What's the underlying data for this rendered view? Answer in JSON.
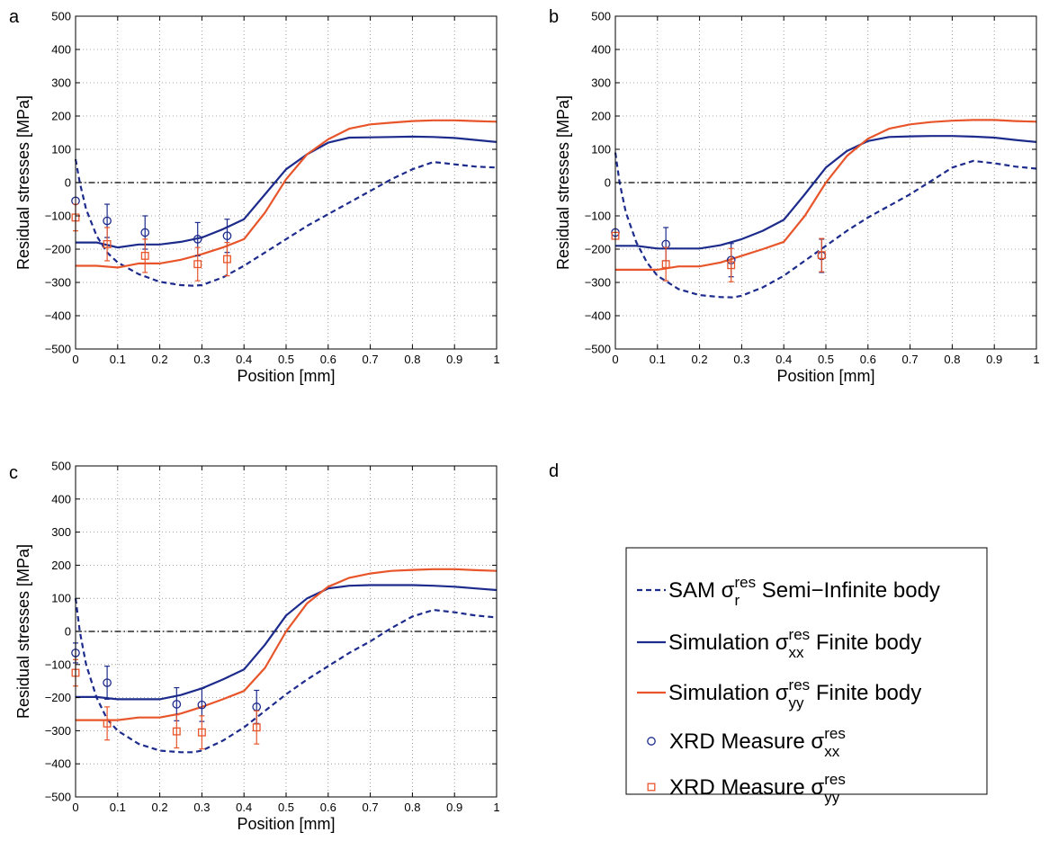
{
  "colors": {
    "sam": "#1c2b8c",
    "sim_xx": "#1c2b8c",
    "sim_yy": "#e8552a",
    "xrd_xx": "#1c2b8c",
    "xrd_yy": "#e8552a",
    "zero_line": "#000000",
    "grid": "#8a8a8a"
  },
  "legend": {
    "panel_letter": "d",
    "items": [
      {
        "pre": "SAM ",
        "sym": "σ",
        "sup": "res",
        "sub": "r",
        "post": " Semi−Infinite body",
        "marker": "dashed",
        "color": "#1c2b8c"
      },
      {
        "pre": "Simulation ",
        "sym": "σ",
        "sup": "res",
        "sub": "xx",
        "post": " Finite body",
        "marker": "line",
        "color": "#1c2b8c"
      },
      {
        "pre": "Simulation ",
        "sym": "σ",
        "sup": "res",
        "sub": "yy",
        "post": " Finite body",
        "marker": "line",
        "color": "#e8552a"
      },
      {
        "pre": "XRD Measure ",
        "sym": "σ",
        "sup": "res",
        "sub": "xx",
        "post": "",
        "marker": "circle",
        "color": "#1c2b8c"
      },
      {
        "pre": "XRD Measure ",
        "sym": "σ",
        "sup": "res",
        "sub": "yy",
        "post": "",
        "marker": "square",
        "color": "#e8552a"
      }
    ]
  },
  "chart_data": [
    {
      "panel": "a",
      "type": "line",
      "xlabel": "Position [mm]",
      "ylabel": "Residual stresses [MPa]",
      "xlim": [
        0,
        1
      ],
      "ylim": [
        -500,
        500
      ],
      "xticks": [
        0,
        0.1,
        0.2,
        0.3,
        0.4,
        0.5,
        0.6,
        0.7,
        0.8,
        0.9,
        1
      ],
      "xtick_labels": [
        "0",
        "0.1",
        "0.2",
        "0.3",
        "0.4",
        "0.5",
        "0.6",
        "0.7",
        "0.8",
        "0.9",
        "1"
      ],
      "yticks": [
        -500,
        -400,
        -300,
        -200,
        -100,
        0,
        100,
        200,
        300,
        400,
        500
      ],
      "ytick_labels": [
        "−500",
        "−400",
        "−300",
        "−200",
        "−100",
        "0",
        "100",
        "200",
        "300",
        "400",
        "500"
      ],
      "grid": true,
      "zero_line": true,
      "series": [
        {
          "key": "sam",
          "style": "dashed",
          "x": [
            0,
            0.01,
            0.025,
            0.05,
            0.075,
            0.1,
            0.15,
            0.2,
            0.25,
            0.28,
            0.3,
            0.35,
            0.4,
            0.45,
            0.5,
            0.55,
            0.6,
            0.65,
            0.7,
            0.75,
            0.8,
            0.85,
            0.9,
            0.95,
            1
          ],
          "y": [
            70,
            0,
            -80,
            -160,
            -210,
            -240,
            -275,
            -298,
            -308,
            -310,
            -308,
            -285,
            -250,
            -210,
            -170,
            -130,
            -95,
            -60,
            -25,
            10,
            40,
            62,
            55,
            48,
            45
          ]
        },
        {
          "key": "sim_xx",
          "style": "solid",
          "x": [
            0,
            0.05,
            0.1,
            0.15,
            0.2,
            0.25,
            0.3,
            0.35,
            0.4,
            0.45,
            0.5,
            0.55,
            0.6,
            0.65,
            0.7,
            0.75,
            0.8,
            0.85,
            0.9,
            0.95,
            1
          ],
          "y": [
            -180,
            -180,
            -195,
            -186,
            -186,
            -178,
            -165,
            -140,
            -110,
            -35,
            40,
            85,
            120,
            135,
            136,
            137,
            138,
            137,
            134,
            128,
            122
          ]
        },
        {
          "key": "sim_yy",
          "style": "solid",
          "x": [
            0,
            0.05,
            0.1,
            0.15,
            0.2,
            0.25,
            0.3,
            0.35,
            0.4,
            0.45,
            0.5,
            0.55,
            0.6,
            0.65,
            0.7,
            0.75,
            0.8,
            0.85,
            0.9,
            0.95,
            1
          ],
          "y": [
            -250,
            -250,
            -255,
            -243,
            -243,
            -232,
            -215,
            -195,
            -170,
            -90,
            10,
            85,
            130,
            162,
            175,
            180,
            185,
            187,
            187,
            185,
            183
          ]
        },
        {
          "key": "xrd_xx",
          "style": "circle",
          "x": [
            0,
            0.075,
            0.165,
            0.29,
            0.36
          ],
          "y": [
            -55,
            -115,
            -150,
            -170,
            -160
          ],
          "err": [
            0,
            50,
            50,
            50,
            50
          ]
        },
        {
          "key": "xrd_yy",
          "style": "square",
          "x": [
            0,
            0.075,
            0.165,
            0.29,
            0.36
          ],
          "y": [
            -105,
            -185,
            -220,
            -245,
            -230
          ],
          "err": [
            40,
            50,
            50,
            50,
            50
          ]
        }
      ]
    },
    {
      "panel": "b",
      "type": "line",
      "xlabel": "Position [mm]",
      "ylabel": "Residual stresses [MPa]",
      "xlim": [
        0,
        1
      ],
      "ylim": [
        -500,
        500
      ],
      "xticks": [
        0,
        0.1,
        0.2,
        0.3,
        0.4,
        0.5,
        0.6,
        0.7,
        0.8,
        0.9,
        1
      ],
      "xtick_labels": [
        "0",
        "0.1",
        "0.2",
        "0.3",
        "0.4",
        "0.5",
        "0.6",
        "0.7",
        "0.8",
        "0.9",
        "1"
      ],
      "yticks": [
        -500,
        -400,
        -300,
        -200,
        -100,
        0,
        100,
        200,
        300,
        400,
        500
      ],
      "ytick_labels": [
        "−500",
        "−400",
        "−300",
        "−200",
        "−100",
        "0",
        "100",
        "200",
        "300",
        "400",
        "500"
      ],
      "grid": true,
      "zero_line": true,
      "series": [
        {
          "key": "sam",
          "style": "dashed",
          "x": [
            0,
            0.01,
            0.025,
            0.05,
            0.075,
            0.1,
            0.15,
            0.2,
            0.25,
            0.28,
            0.3,
            0.35,
            0.4,
            0.45,
            0.5,
            0.55,
            0.6,
            0.65,
            0.7,
            0.75,
            0.8,
            0.85,
            0.9,
            0.95,
            1
          ],
          "y": [
            90,
            0,
            -90,
            -180,
            -240,
            -280,
            -320,
            -338,
            -344,
            -345,
            -340,
            -315,
            -280,
            -235,
            -190,
            -145,
            -105,
            -70,
            -35,
            5,
            45,
            65,
            58,
            48,
            42
          ]
        },
        {
          "key": "sim_xx",
          "style": "solid",
          "x": [
            0,
            0.05,
            0.1,
            0.15,
            0.2,
            0.25,
            0.3,
            0.35,
            0.4,
            0.45,
            0.5,
            0.55,
            0.6,
            0.65,
            0.7,
            0.75,
            0.8,
            0.85,
            0.9,
            0.95,
            1
          ],
          "y": [
            -190,
            -190,
            -198,
            -198,
            -198,
            -188,
            -170,
            -145,
            -112,
            -35,
            45,
            95,
            125,
            137,
            139,
            140,
            140,
            138,
            135,
            128,
            122
          ]
        },
        {
          "key": "sim_yy",
          "style": "solid",
          "x": [
            0,
            0.05,
            0.1,
            0.15,
            0.2,
            0.25,
            0.3,
            0.35,
            0.4,
            0.45,
            0.5,
            0.55,
            0.6,
            0.65,
            0.7,
            0.75,
            0.8,
            0.85,
            0.9,
            0.95,
            1
          ],
          "y": [
            -262,
            -262,
            -262,
            -252,
            -252,
            -240,
            -220,
            -200,
            -178,
            -100,
            0,
            80,
            132,
            162,
            175,
            182,
            186,
            188,
            188,
            185,
            183
          ]
        },
        {
          "key": "xrd_xx",
          "style": "circle",
          "x": [
            0,
            0.12,
            0.275,
            0.49
          ],
          "y": [
            -150,
            -185,
            -233,
            -220
          ],
          "err": [
            0,
            50,
            50,
            50
          ]
        },
        {
          "key": "xrd_yy",
          "style": "square",
          "x": [
            0,
            0.12,
            0.275,
            0.49
          ],
          "y": [
            -160,
            -245,
            -248,
            -218
          ],
          "err": [
            0,
            50,
            50,
            50
          ]
        }
      ]
    },
    {
      "panel": "c",
      "type": "line",
      "xlabel": "Position [mm]",
      "ylabel": "Residual stresses [MPa]",
      "xlim": [
        0,
        1
      ],
      "ylim": [
        -500,
        500
      ],
      "xticks": [
        0,
        0.1,
        0.2,
        0.3,
        0.4,
        0.5,
        0.6,
        0.7,
        0.8,
        0.9,
        1
      ],
      "xtick_labels": [
        "0",
        "0.1",
        "0.2",
        "0.3",
        "0.4",
        "0.5",
        "0.6",
        "0.7",
        "0.8",
        "0.9",
        "1"
      ],
      "yticks": [
        -500,
        -400,
        -300,
        -200,
        -100,
        0,
        100,
        200,
        300,
        400,
        500
      ],
      "ytick_labels": [
        "−500",
        "−400",
        "−300",
        "−200",
        "−100",
        "0",
        "100",
        "200",
        "300",
        "400",
        "500"
      ],
      "grid": true,
      "zero_line": true,
      "series": [
        {
          "key": "sam",
          "style": "dashed",
          "x": [
            0,
            0.01,
            0.025,
            0.05,
            0.075,
            0.1,
            0.15,
            0.2,
            0.25,
            0.28,
            0.3,
            0.35,
            0.4,
            0.45,
            0.5,
            0.55,
            0.6,
            0.65,
            0.7,
            0.75,
            0.8,
            0.85,
            0.9,
            0.95,
            1
          ],
          "y": [
            100,
            0,
            -100,
            -200,
            -265,
            -300,
            -340,
            -360,
            -365,
            -365,
            -360,
            -330,
            -290,
            -240,
            -190,
            -145,
            -105,
            -65,
            -30,
            10,
            45,
            65,
            58,
            48,
            42
          ]
        },
        {
          "key": "sim_xx",
          "style": "solid",
          "x": [
            0,
            0.05,
            0.1,
            0.15,
            0.2,
            0.25,
            0.3,
            0.35,
            0.4,
            0.45,
            0.5,
            0.55,
            0.6,
            0.65,
            0.7,
            0.75,
            0.8,
            0.85,
            0.9,
            0.95,
            1
          ],
          "y": [
            -198,
            -198,
            -205,
            -205,
            -205,
            -192,
            -172,
            -145,
            -115,
            -40,
            48,
            100,
            130,
            138,
            140,
            140,
            140,
            138,
            135,
            130,
            125
          ]
        },
        {
          "key": "sim_yy",
          "style": "solid",
          "x": [
            0,
            0.05,
            0.1,
            0.15,
            0.2,
            0.25,
            0.3,
            0.35,
            0.4,
            0.45,
            0.5,
            0.55,
            0.6,
            0.65,
            0.7,
            0.75,
            0.8,
            0.85,
            0.9,
            0.95,
            1
          ],
          "y": [
            -268,
            -268,
            -268,
            -260,
            -260,
            -248,
            -228,
            -205,
            -180,
            -110,
            0,
            85,
            135,
            162,
            175,
            183,
            186,
            188,
            188,
            185,
            183
          ]
        },
        {
          "key": "xrd_xx",
          "style": "circle",
          "x": [
            0,
            0.075,
            0.24,
            0.3,
            0.43
          ],
          "y": [
            -65,
            -155,
            -220,
            -222,
            -228
          ],
          "err": [
            30,
            50,
            50,
            50,
            50
          ]
        },
        {
          "key": "xrd_yy",
          "style": "square",
          "x": [
            0,
            0.075,
            0.24,
            0.3,
            0.43
          ],
          "y": [
            -125,
            -278,
            -302,
            -305,
            -290
          ],
          "err": [
            40,
            50,
            50,
            50,
            50
          ]
        }
      ]
    }
  ]
}
